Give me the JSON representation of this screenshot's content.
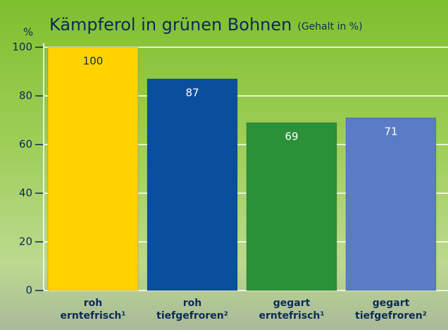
{
  "chart_data": {
    "type": "bar",
    "title": "Kämpferol in grünen Bohnen",
    "subtitle": "(Gehalt in %)",
    "y_label": "%",
    "categories": [
      "roh erntefrisch¹",
      "roh tiefgefroren²",
      "gegart erntefrisch¹",
      "gegart tiefgefroren²"
    ],
    "values": [
      100,
      87,
      69,
      71
    ],
    "colors": [
      "#ffd200",
      "#0a4f9e",
      "#2a9138",
      "#5a7cc4"
    ],
    "ylim": [
      0,
      100
    ],
    "yticks": [
      0,
      20,
      40,
      60,
      80,
      100
    ],
    "grid": true
  }
}
